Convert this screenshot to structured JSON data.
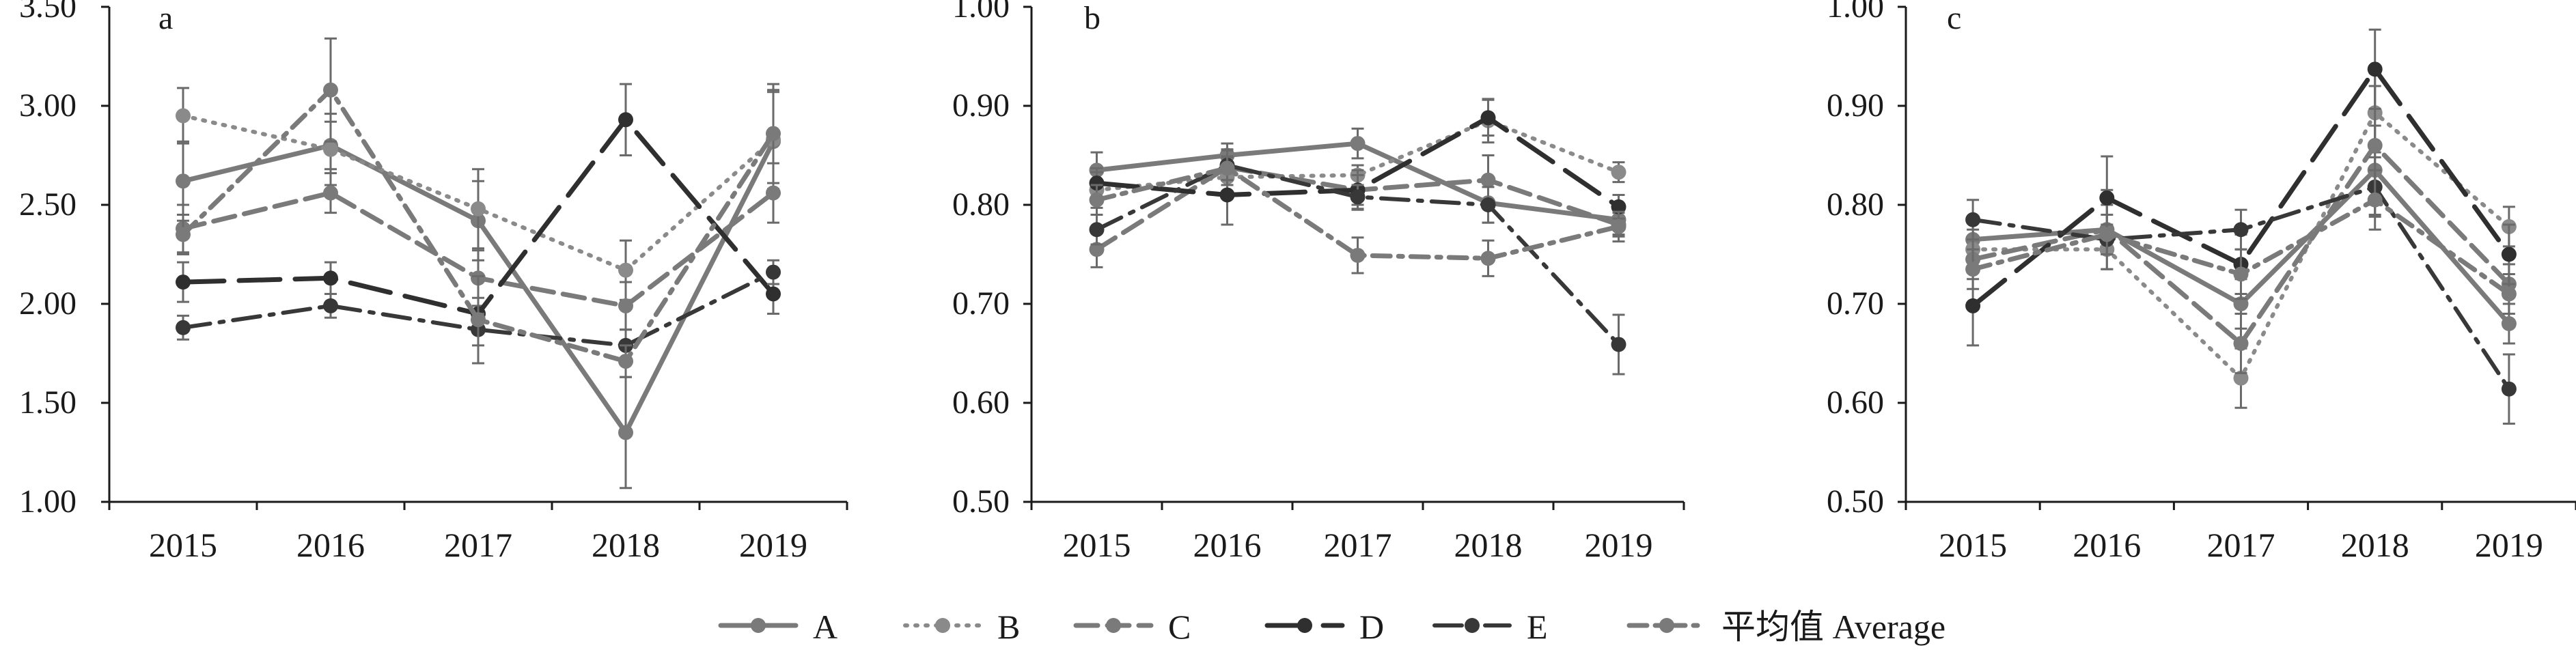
{
  "colors": {
    "axis": "#1a1a1a",
    "gray_light": "#8a8a8a",
    "gray_mid": "#7a7a7a",
    "gray_dark": "#2f2f2f",
    "gray_dark2": "#383838",
    "background": "#ffffff"
  },
  "legend": [
    {
      "key": "A",
      "label": "A"
    },
    {
      "key": "B",
      "label": "B"
    },
    {
      "key": "C",
      "label": "C"
    },
    {
      "key": "D",
      "label": "D"
    },
    {
      "key": "E",
      "label": "E"
    },
    {
      "key": "avg",
      "label": "平均值 Average"
    }
  ],
  "chart_data": [
    {
      "type": "line",
      "panel_label": "a",
      "categories": [
        "2015",
        "2016",
        "2017",
        "2018",
        "2019"
      ],
      "ylim": [
        1.0,
        3.5
      ],
      "yticks": [
        "1.00",
        "1.50",
        "2.00",
        "2.50",
        "3.00",
        "3.50"
      ],
      "series": [
        {
          "name": "A",
          "values": [
            2.62,
            2.8,
            2.42,
            1.35,
            2.82
          ],
          "err": [
            0.2,
            0.12,
            0.2,
            0.28,
            0.25
          ]
        },
        {
          "name": "B",
          "values": [
            2.95,
            2.78,
            2.48,
            2.17,
            2.83
          ],
          "err": [
            0.14,
            0.18,
            0.2,
            0.15,
            0.25
          ]
        },
        {
          "name": "C",
          "values": [
            2.38,
            2.56,
            2.13,
            1.99,
            2.56
          ],
          "err": [
            0.12,
            0.1,
            0.14,
            0.12,
            0.15
          ]
        },
        {
          "name": "D",
          "values": [
            2.11,
            2.13,
            1.95,
            2.93,
            2.05
          ],
          "err": [
            0.1,
            0.08,
            0.08,
            0.18,
            0.1
          ]
        },
        {
          "name": "E",
          "values": [
            1.88,
            1.99,
            1.87,
            1.79,
            2.16
          ],
          "err": [
            0.06,
            0.06,
            0.08,
            0.08,
            0.06
          ]
        },
        {
          "name": "平均值 Average",
          "values": [
            2.35,
            3.08,
            1.92,
            1.71,
            2.86
          ],
          "err": [
            0.1,
            0.26,
            0.22,
            0.08,
            0.25
          ]
        }
      ]
    },
    {
      "type": "line",
      "panel_label": "b",
      "categories": [
        "2015",
        "2016",
        "2017",
        "2018",
        "2019"
      ],
      "ylim": [
        0.5,
        1.0
      ],
      "yticks": [
        "0.50",
        "0.60",
        "0.70",
        "0.80",
        "0.90",
        "1.00"
      ],
      "series": [
        {
          "name": "A",
          "values": [
            0.835,
            0.85,
            0.862,
            0.802,
            0.785
          ],
          "err": [
            0.018,
            0.012,
            0.015,
            0.02,
            0.015
          ]
        },
        {
          "name": "B",
          "values": [
            0.815,
            0.828,
            0.83,
            0.885,
            0.833
          ],
          "err": [
            0.018,
            0.02,
            0.01,
            0.022,
            0.01
          ]
        },
        {
          "name": "C",
          "values": [
            0.755,
            0.838,
            0.815,
            0.825,
            0.78
          ],
          "err": [
            0.018,
            0.018,
            0.015,
            0.025,
            0.012
          ]
        },
        {
          "name": "D",
          "values": [
            0.822,
            0.81,
            0.815,
            0.888,
            0.798
          ],
          "err": [
            0.015,
            0.03,
            0.02,
            0.018,
            0.012
          ]
        },
        {
          "name": "E",
          "values": [
            0.775,
            0.84,
            0.808,
            0.8,
            0.659
          ],
          "err": [
            0.015,
            0.015,
            0.012,
            0.018,
            0.03
          ]
        },
        {
          "name": "平均值 Average",
          "values": [
            0.805,
            0.837,
            0.749,
            0.746,
            0.778
          ],
          "err": [
            0.015,
            0.012,
            0.018,
            0.018,
            0.015
          ]
        }
      ]
    },
    {
      "type": "line",
      "panel_label": "c",
      "categories": [
        "2015",
        "2016",
        "2017",
        "2018",
        "2019"
      ],
      "ylim": [
        0.5,
        1.0
      ],
      "yticks": [
        "0.50",
        "0.60",
        "0.70",
        "0.80",
        "0.90",
        "1.00"
      ],
      "series": [
        {
          "name": "A",
          "values": [
            0.765,
            0.775,
            0.7,
            0.835,
            0.68
          ],
          "err": [
            0.02,
            0.025,
            0.025,
            0.045,
            0.02
          ]
        },
        {
          "name": "B",
          "values": [
            0.755,
            0.755,
            0.625,
            0.893,
            0.778
          ],
          "err": [
            0.02,
            0.02,
            0.03,
            0.04,
            0.02
          ]
        },
        {
          "name": "C",
          "values": [
            0.745,
            0.775,
            0.66,
            0.86,
            0.72
          ],
          "err": [
            0.02,
            0.04,
            0.03,
            0.06,
            0.02
          ]
        },
        {
          "name": "D",
          "values": [
            0.698,
            0.807,
            0.74,
            0.937,
            0.75
          ],
          "err": [
            0.04,
            0.042,
            0.03,
            0.04,
            0.03
          ]
        },
        {
          "name": "E",
          "values": [
            0.785,
            0.765,
            0.775,
            0.818,
            0.614
          ],
          "err": [
            0.02,
            0.015,
            0.02,
            0.03,
            0.035
          ]
        },
        {
          "name": "平均值 Average",
          "values": [
            0.735,
            0.77,
            0.73,
            0.805,
            0.71
          ],
          "err": [
            0.02,
            0.02,
            0.025,
            0.03,
            0.02
          ]
        }
      ]
    }
  ]
}
